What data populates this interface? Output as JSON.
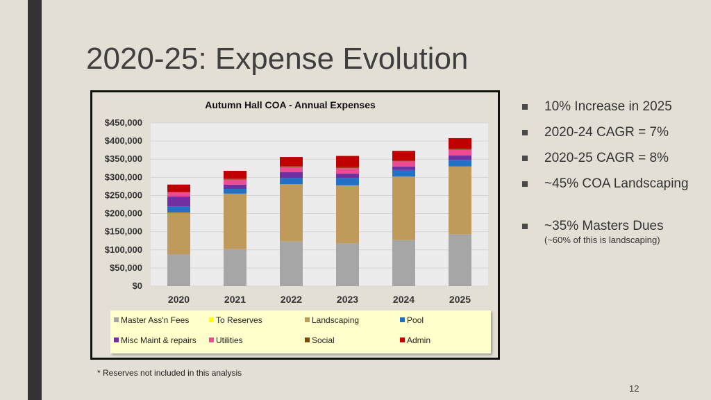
{
  "slide": {
    "title": "2020-25:  Expense Evolution",
    "footnote": "* Reserves not included in this analysis",
    "page_number": "12"
  },
  "bullets": [
    {
      "text": "10% Increase in 2025"
    },
    {
      "text": "2020-24 CAGR = 7%"
    },
    {
      "text": "2020-25 CAGR = 8%"
    },
    {
      "text": "~45% COA Landscaping"
    },
    {
      "text": "~35% Masters Dues",
      "sub": "(~60% of this is landscaping)"
    }
  ],
  "colors": {
    "background": "#e3dfd5",
    "legend_bg": "#ffffcc"
  },
  "chart_data": {
    "type": "bar",
    "stacked": true,
    "title": "Autumn Hall COA - Annual Expenses",
    "categories": [
      "2020",
      "2021",
      "2022",
      "2023",
      "2024",
      "2025"
    ],
    "ylim": [
      0,
      450000
    ],
    "y_ticks": [
      "$0",
      "$50,000",
      "$100,000",
      "$150,000",
      "$200,000",
      "$250,000",
      "$300,000",
      "$350,000",
      "$400,000",
      "$450,000"
    ],
    "y_tick_values": [
      0,
      50000,
      100000,
      150000,
      200000,
      250000,
      300000,
      350000,
      400000,
      450000
    ],
    "grid": true,
    "legend_position": "bottom",
    "series": [
      {
        "name": "Master Ass'n Fees",
        "color": "#a6a6a6",
        "values": [
          88000,
          102000,
          123000,
          118000,
          127000,
          143000
        ]
      },
      {
        "name": "Landscaping",
        "color": "#c09a5b",
        "values": [
          115000,
          153000,
          158000,
          160000,
          175000,
          187000
        ]
      },
      {
        "name": "Pool",
        "color": "#2371c4",
        "values": [
          17000,
          13000,
          17000,
          20000,
          18000,
          18000
        ]
      },
      {
        "name": "Misc Maint & repairs",
        "color": "#7030a0",
        "values": [
          27000,
          12000,
          16000,
          12000,
          10000,
          12000
        ]
      },
      {
        "name": "Utilities",
        "color": "#ee4c92",
        "values": [
          12000,
          14000,
          14000,
          15000,
          14000,
          16000
        ]
      },
      {
        "name": "Social",
        "color": "#7f4b00",
        "values": [
          0,
          3000,
          3000,
          3000,
          2000,
          3000
        ]
      },
      {
        "name": "Admin",
        "color": "#c00000",
        "values": [
          21000,
          21000,
          25000,
          31000,
          27000,
          29000
        ]
      },
      {
        "name": "To Reserves",
        "color": "#ffff00",
        "values": [
          0,
          0,
          0,
          0,
          0,
          0
        ]
      }
    ],
    "legend": [
      {
        "name": "Master Ass'n Fees",
        "color": "#a6a6a6"
      },
      {
        "name": "To Reserves",
        "color": "#ffff00"
      },
      {
        "name": "Landscaping",
        "color": "#c09a5b"
      },
      {
        "name": "Pool",
        "color": "#2371c4"
      },
      {
        "name": "Misc Maint & repairs",
        "color": "#7030a0"
      },
      {
        "name": "Utilities",
        "color": "#ee4c92"
      },
      {
        "name": "Social",
        "color": "#7f4b00"
      },
      {
        "name": "Admin",
        "color": "#c00000"
      }
    ]
  }
}
